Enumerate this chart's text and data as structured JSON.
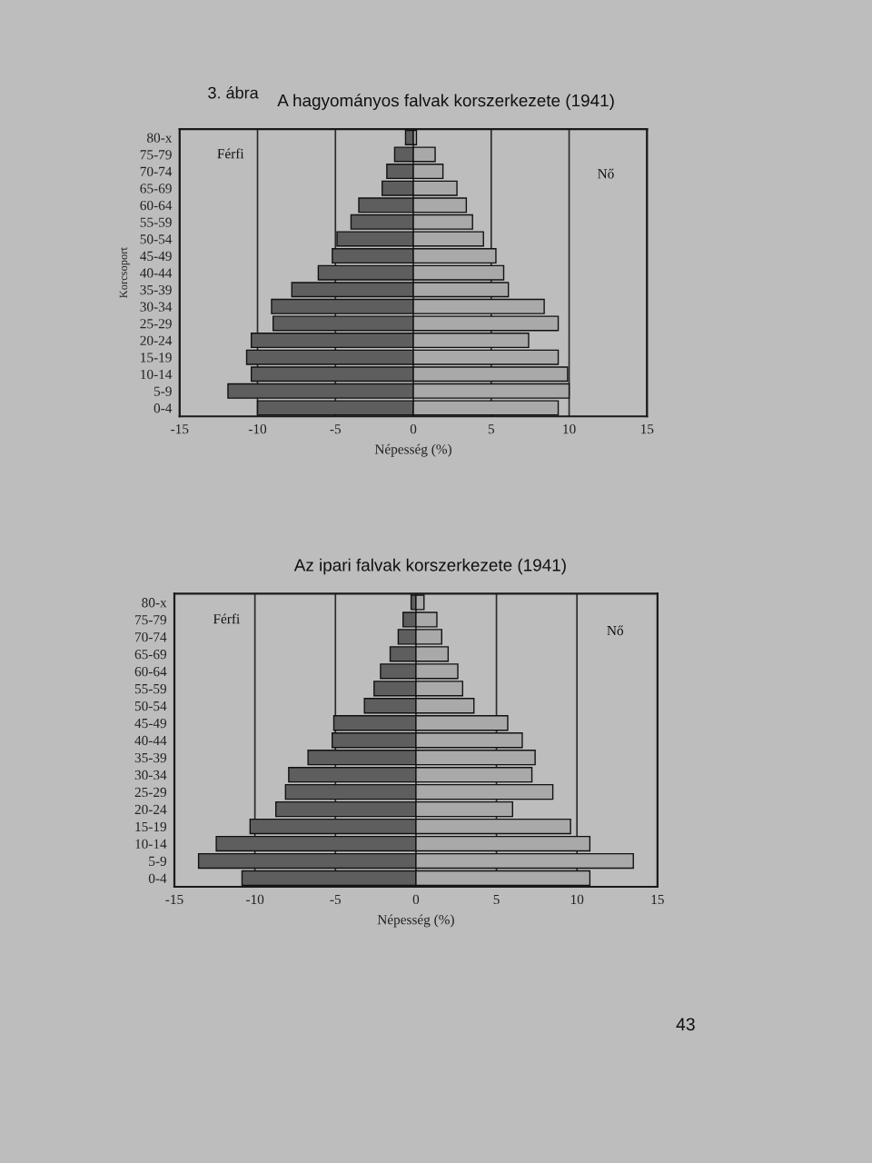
{
  "chart_data": [
    {
      "type": "bar",
      "orientation": "horizontal",
      "stacked": true,
      "title": "A hagyományos falvak korszerkezete (1941)",
      "xlabel": "Népesség (%)",
      "ylabel": "Korcsoport",
      "annotations": [
        "3. ábra",
        "Férfi",
        "Nő"
      ],
      "categories": [
        "80-x",
        "75-79",
        "70-74",
        "65-69",
        "60-64",
        "55-59",
        "50-54",
        "45-49",
        "40-44",
        "35-39",
        "30-34",
        "25-29",
        "20-24",
        "15-19",
        "10-14",
        "5-9",
        "0-4"
      ],
      "series": [
        {
          "color": "#5e5e5e",
          "values": [
            -0.5,
            -1.2,
            -1.7,
            -2.0,
            -3.5,
            -4.0,
            -4.9,
            -5.2,
            -6.1,
            -7.8,
            -9.1,
            -9.0,
            -10.4,
            -10.7,
            -10.4,
            -11.9,
            -10.0
          ]
        },
        {
          "color": "#a9a9a9",
          "values": [
            0.2,
            1.4,
            1.9,
            2.8,
            3.4,
            3.8,
            4.5,
            5.3,
            5.8,
            6.1,
            8.4,
            9.3,
            7.4,
            9.3,
            9.9,
            10.0,
            9.3
          ]
        }
      ],
      "xlim": [
        -15,
        15
      ],
      "xticks": [
        -15,
        -10,
        -5,
        0,
        5,
        10,
        15
      ],
      "grid": "x"
    },
    {
      "type": "bar",
      "orientation": "horizontal",
      "stacked": true,
      "title": "Az ipari falvak korszerkezete (1941)",
      "xlabel": "Népesség (%)",
      "annotations": [
        "Férfi",
        "Nő",
        "43"
      ],
      "categories": [
        "80-x",
        "75-79",
        "70-74",
        "65-69",
        "60-64",
        "55-59",
        "50-54",
        "45-49",
        "40-44",
        "35-39",
        "30-34",
        "25-29",
        "20-24",
        "15-19",
        "10-14",
        "5-9",
        "0-4"
      ],
      "series": [
        {
          "color": "#5e5e5e",
          "values": [
            -0.3,
            -0.8,
            -1.1,
            -1.6,
            -2.2,
            -2.6,
            -3.2,
            -5.1,
            -5.2,
            -6.7,
            -7.9,
            -8.1,
            -8.7,
            -10.3,
            -12.4,
            -13.5,
            -10.8
          ]
        },
        {
          "color": "#a9a9a9",
          "values": [
            0.5,
            1.3,
            1.6,
            2.0,
            2.6,
            2.9,
            3.6,
            5.7,
            6.6,
            7.4,
            7.2,
            8.5,
            6.0,
            9.6,
            10.8,
            13.5,
            10.8
          ]
        }
      ],
      "xlim": [
        -15,
        15
      ],
      "xticks": [
        -15,
        -10,
        -5,
        0,
        5,
        10,
        15
      ],
      "grid": "x"
    }
  ]
}
